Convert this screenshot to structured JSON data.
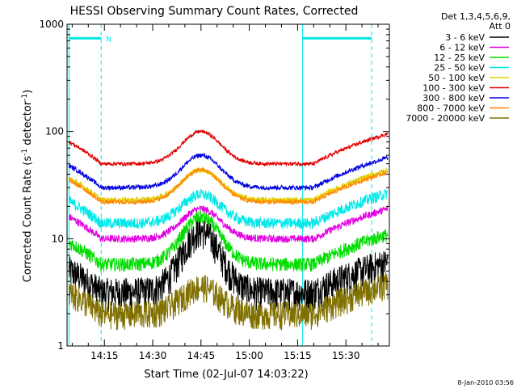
{
  "chart_data": {
    "type": "line",
    "title": "HESSI Observing Summary Count Rates, Corrected",
    "ylabel_main": "Corrected Count Rate (s",
    "ylabel_sup1": "-1",
    "ylabel_mid": " detector",
    "ylabel_sup2": "-1",
    "ylabel_end": ")",
    "xlabel": "Start Time (02-Jul-07 14:03:22)",
    "yscale": "log",
    "ylim": [
      1,
      1000
    ],
    "xlim_minutes_after_14h": [
      3.4,
      43.5
    ],
    "x_ticks": [
      {
        "label": "14:15",
        "min": 15
      },
      {
        "label": "14:30",
        "min": 30
      },
      {
        "label": "14:45",
        "min": 45
      },
      {
        "label": "15:00",
        "min": 60
      },
      {
        "label": "15:15",
        "min": 75
      },
      {
        "label": "15:30",
        "min": 90
      }
    ],
    "y_ticks": [
      {
        "label": "1",
        "v": 1
      },
      {
        "label": "10",
        "v": 10
      },
      {
        "label": "100",
        "v": 100
      },
      {
        "label": "1000",
        "v": 1000
      }
    ],
    "legend_header": [
      "Det 1,3,4,5,6,9,",
      "Att 0"
    ],
    "legend_position": "right",
    "timestamp": "8-Jan-2010 03:56",
    "flag_label": "N",
    "series": [
      {
        "name": "3 - 6 keV",
        "color": "#000000",
        "base": 3.2,
        "peak": 12,
        "noise": 0.35
      },
      {
        "name": "6 - 12 keV",
        "color": "#e000e0",
        "base": 10,
        "peak": 19,
        "noise": 0.08
      },
      {
        "name": "12 - 25 keV",
        "color": "#00dd00",
        "base": 5.8,
        "peak": 16,
        "noise": 0.15
      },
      {
        "name": "25 - 50 keV",
        "color": "#00e8e8",
        "base": 14,
        "peak": 26,
        "noise": 0.12
      },
      {
        "name": "50 - 100 keV",
        "color": "#e0d000",
        "base": 23,
        "peak": 44,
        "noise": 0.06
      },
      {
        "name": "100 - 300 keV",
        "color": "#e00000",
        "base": 50,
        "peak": 100,
        "noise": 0.04
      },
      {
        "name": "300 - 800 keV",
        "color": "#0000e0",
        "base": 30,
        "peak": 60,
        "noise": 0.05
      },
      {
        "name": "800 - 7000 keV",
        "color": "#ff8800",
        "base": 22,
        "peak": 44,
        "noise": 0.05
      },
      {
        "name": "7000 - 20000 keV",
        "color": "#807000",
        "base": 2.0,
        "peak": 3.6,
        "noise": 0.3
      }
    ]
  }
}
